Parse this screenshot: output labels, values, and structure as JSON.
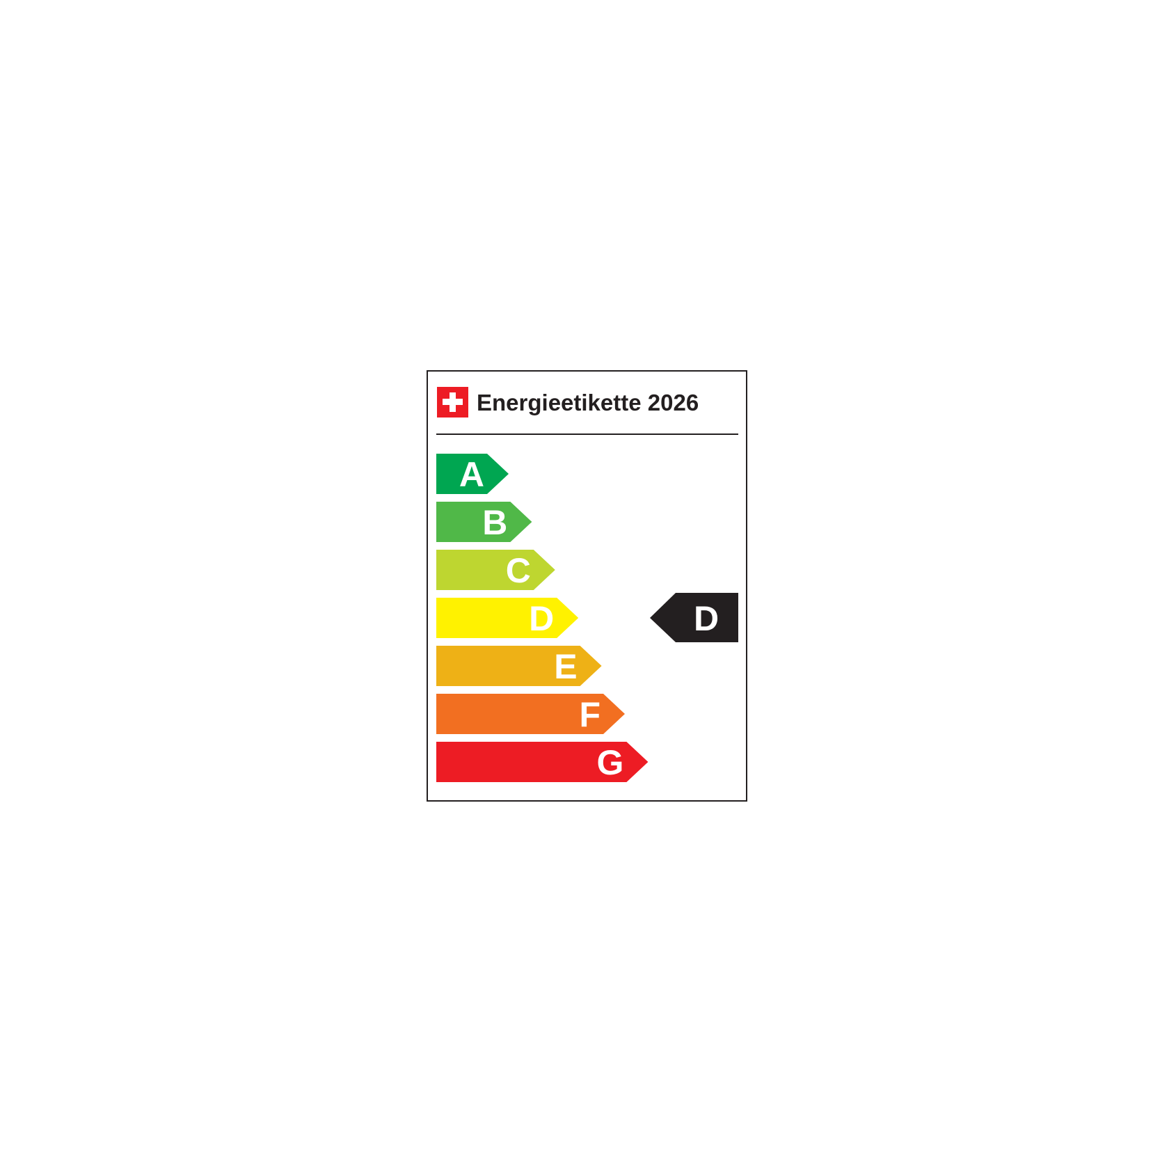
{
  "label": {
    "title": "Energieetikette 2026",
    "flag_icon": "swiss-flag",
    "classes": [
      {
        "letter": "A",
        "color": "#00a651"
      },
      {
        "letter": "B",
        "color": "#50b848"
      },
      {
        "letter": "C",
        "color": "#bed630"
      },
      {
        "letter": "D",
        "color": "#fff200"
      },
      {
        "letter": "E",
        "color": "#eeb116"
      },
      {
        "letter": "F",
        "color": "#f26f21"
      },
      {
        "letter": "G",
        "color": "#ed1c24"
      }
    ],
    "rating": {
      "letter": "D",
      "color": "#231f20"
    }
  }
}
